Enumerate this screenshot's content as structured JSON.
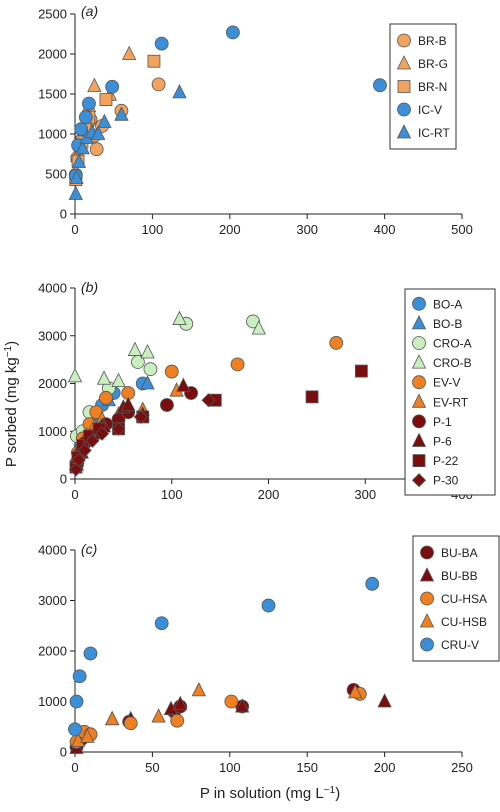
{
  "colors": {
    "BR-B": "#f2a35e",
    "BR-G": "#f2a35e",
    "BR-N": "#f2a35e",
    "IC-V": "#3b8fd9",
    "IC-RT": "#3b8fd9",
    "BO-A": "#3b8fd9",
    "BO-B": "#3b8fd9",
    "CRO-A": "#c9efc1",
    "CRO-B": "#c9efc1",
    "EV-V": "#f07f22",
    "EV-RT": "#f07f22",
    "P-1": "#7a0d0d",
    "P-6": "#7a0d0d",
    "P-22": "#7a0d0d",
    "P-30": "#7a0d0d",
    "BU-BA": "#7a0d0d",
    "BU-BB": "#7a0d0d",
    "CU-HSA": "#f07f22",
    "CU-HSB": "#f07f22",
    "CRU-V": "#3b8fd9"
  },
  "shared_labels": {
    "ylabel_main": "P sorbed (mg kg",
    "ylabel_sup": "−1",
    "ylabel_close": ")",
    "xlabel_main": "P in solution (mg L",
    "xlabel_sup": "−1",
    "xlabel_close": ")"
  },
  "chart_data": [
    {
      "type": "scatter",
      "panel_label": "(a)",
      "xlim": [
        0,
        500
      ],
      "ylim": [
        0,
        2500
      ],
      "xticks": [
        0,
        100,
        200,
        300,
        400,
        500
      ],
      "yticks": [
        0,
        500,
        1000,
        1500,
        2000,
        2500
      ],
      "show_xlabel": false,
      "show_ylabel": false,
      "legend_position": "top-right",
      "series": [
        {
          "name": "BR-B",
          "marker": "circle",
          "points": [
            [
              1,
              490
            ],
            [
              3,
              700
            ],
            [
              6,
              830
            ],
            [
              9,
              920
            ],
            [
              12,
              1010
            ],
            [
              16,
              1110
            ],
            [
              20,
              1180
            ],
            [
              25,
              980
            ],
            [
              28,
              810
            ],
            [
              35,
              1100
            ],
            [
              60,
              1290
            ],
            [
              108,
              1620
            ]
          ]
        },
        {
          "name": "BR-G",
          "marker": "triangle",
          "points": [
            [
              1,
              520
            ],
            [
              3,
              720
            ],
            [
              8,
              920
            ],
            [
              12,
              1130
            ],
            [
              18,
              1350
            ],
            [
              25,
              1600
            ],
            [
              45,
              1490
            ],
            [
              70,
              2000
            ]
          ]
        },
        {
          "name": "BR-N",
          "marker": "square",
          "points": [
            [
              1,
              430
            ],
            [
              4,
              660
            ],
            [
              9,
              900
            ],
            [
              13,
              1060
            ],
            [
              18,
              1210
            ],
            [
              40,
              1430
            ],
            [
              102,
              1910
            ]
          ]
        },
        {
          "name": "IC-V",
          "marker": "circle",
          "points": [
            [
              1,
              480
            ],
            [
              4,
              860
            ],
            [
              8,
              1060
            ],
            [
              14,
              1210
            ],
            [
              18,
              1380
            ],
            [
              48,
              1590
            ],
            [
              112,
              2130
            ],
            [
              204,
              2270
            ],
            [
              394,
              1610
            ]
          ]
        },
        {
          "name": "IC-RT",
          "marker": "triangle",
          "points": [
            [
              1,
              250
            ],
            [
              2,
              450
            ],
            [
              5,
              650
            ],
            [
              10,
              820
            ],
            [
              15,
              950
            ],
            [
              22,
              1020
            ],
            [
              30,
              1000
            ],
            [
              38,
              1150
            ],
            [
              60,
              1240
            ],
            [
              135,
              1520
            ]
          ]
        }
      ]
    },
    {
      "type": "scatter",
      "panel_label": "(b)",
      "xlim": [
        0,
        400
      ],
      "ylim": [
        0,
        4000
      ],
      "xticks": [
        0,
        100,
        200,
        300,
        400
      ],
      "yticks": [
        0,
        1000,
        2000,
        3000,
        4000
      ],
      "show_xlabel": false,
      "show_ylabel": true,
      "legend_position": "top-right",
      "series": [
        {
          "name": "BO-A",
          "marker": "circle",
          "points": [
            [
              2,
              350
            ],
            [
              6,
              700
            ],
            [
              12,
              1000
            ],
            [
              20,
              1200
            ],
            [
              28,
              1550
            ],
            [
              40,
              1800
            ],
            [
              70,
              2000
            ]
          ]
        },
        {
          "name": "BO-B",
          "marker": "triangle",
          "points": [
            [
              2,
              400
            ],
            [
              7,
              800
            ],
            [
              14,
              1100
            ],
            [
              22,
              1350
            ],
            [
              35,
              1650
            ],
            [
              75,
              2000
            ]
          ]
        },
        {
          "name": "CRO-A",
          "marker": "circle",
          "points": [
            [
              2,
              900
            ],
            [
              8,
              1000
            ],
            [
              15,
              1400
            ],
            [
              35,
              1900
            ],
            [
              65,
              2450
            ],
            [
              78,
              2300
            ],
            [
              115,
              3250
            ],
            [
              184,
              3300
            ]
          ]
        },
        {
          "name": "CRO-B",
          "marker": "triangle",
          "points": [
            [
              0,
              2150
            ],
            [
              30,
              2100
            ],
            [
              45,
              2050
            ],
            [
              62,
              2700
            ],
            [
              75,
              2650
            ],
            [
              108,
              3350
            ],
            [
              190,
              3150
            ]
          ]
        },
        {
          "name": "EV-V",
          "marker": "circle",
          "points": [
            [
              3,
              550
            ],
            [
              8,
              850
            ],
            [
              15,
              1150
            ],
            [
              22,
              1400
            ],
            [
              32,
              1700
            ],
            [
              55,
              1800
            ],
            [
              100,
              2250
            ],
            [
              168,
              2400
            ],
            [
              270,
              2850
            ]
          ]
        },
        {
          "name": "EV-RT",
          "marker": "triangle",
          "points": [
            [
              2,
              450
            ],
            [
              6,
              700
            ],
            [
              12,
              900
            ],
            [
              20,
              1100
            ],
            [
              28,
              1250
            ],
            [
              45,
              1350
            ],
            [
              70,
              1450
            ],
            [
              105,
              1850
            ]
          ]
        },
        {
          "name": "P-1",
          "marker": "circle",
          "points": [
            [
              2,
              300
            ],
            [
              6,
              550
            ],
            [
              10,
              750
            ],
            [
              16,
              900
            ],
            [
              25,
              1050
            ],
            [
              32,
              1150
            ],
            [
              45,
              1250
            ],
            [
              55,
              1400
            ],
            [
              95,
              1550
            ],
            [
              120,
              1800
            ]
          ]
        },
        {
          "name": "P-6",
          "marker": "triangle",
          "points": [
            [
              2,
              300
            ],
            [
              7,
              550
            ],
            [
              12,
              800
            ],
            [
              20,
              950
            ],
            [
              30,
              1100
            ],
            [
              50,
              1500
            ],
            [
              55,
              1550
            ],
            [
              70,
              1350
            ],
            [
              112,
              1950
            ]
          ]
        },
        {
          "name": "P-22",
          "marker": "square",
          "points": [
            [
              1,
              250
            ],
            [
              3,
              450
            ],
            [
              8,
              700
            ],
            [
              15,
              900
            ],
            [
              25,
              1050
            ],
            [
              45,
              1050
            ],
            [
              70,
              1300
            ],
            [
              145,
              1650
            ],
            [
              245,
              1720
            ],
            [
              296,
              2260
            ]
          ]
        },
        {
          "name": "P-30",
          "marker": "diamond",
          "points": [
            [
              1,
              200
            ],
            [
              4,
              400
            ],
            [
              10,
              600
            ],
            [
              18,
              800
            ],
            [
              28,
              950
            ],
            [
              45,
              1050
            ],
            [
              68,
              1300
            ],
            [
              138,
              1650
            ]
          ]
        }
      ]
    },
    {
      "type": "scatter",
      "panel_label": "(c)",
      "xlim": [
        0,
        250
      ],
      "ylim": [
        0,
        4000
      ],
      "xticks": [
        0,
        50,
        100,
        150,
        200,
        250
      ],
      "yticks": [
        0,
        1000,
        2000,
        3000,
        4000
      ],
      "show_xlabel": true,
      "show_ylabel": false,
      "legend_position": "top-right",
      "series": [
        {
          "name": "BU-BA",
          "marker": "circle",
          "points": [
            [
              1,
              100
            ],
            [
              4,
              250
            ],
            [
              10,
              350
            ],
            [
              35,
              600
            ],
            [
              64,
              800
            ],
            [
              68,
              900
            ],
            [
              108,
              900
            ],
            [
              180,
              1230
            ]
          ]
        },
        {
          "name": "BU-BB",
          "marker": "triangle",
          "points": [
            [
              1,
              80
            ],
            [
              5,
              300
            ],
            [
              24,
              650
            ],
            [
              36,
              650
            ],
            [
              62,
              850
            ],
            [
              68,
              950
            ],
            [
              108,
              900
            ],
            [
              200,
              1000
            ]
          ]
        },
        {
          "name": "CU-HSA",
          "marker": "circle",
          "points": [
            [
              1,
              200
            ],
            [
              6,
              400
            ],
            [
              10,
              350
            ],
            [
              36,
              570
            ],
            [
              66,
              620
            ],
            [
              101,
              1000
            ],
            [
              184,
              1150
            ]
          ]
        },
        {
          "name": "CU-HSB",
          "marker": "triangle",
          "points": [
            [
              2,
              220
            ],
            [
              8,
              300
            ],
            [
              24,
              650
            ],
            [
              54,
              700
            ],
            [
              80,
              1220
            ],
            [
              181,
              1180
            ]
          ]
        },
        {
          "name": "CRU-V",
          "marker": "circle",
          "points": [
            [
              0,
              450
            ],
            [
              1,
              1000
            ],
            [
              3,
              1500
            ],
            [
              10,
              1950
            ],
            [
              56,
              2550
            ],
            [
              125,
              2900
            ],
            [
              192,
              3330
            ]
          ]
        }
      ]
    }
  ]
}
